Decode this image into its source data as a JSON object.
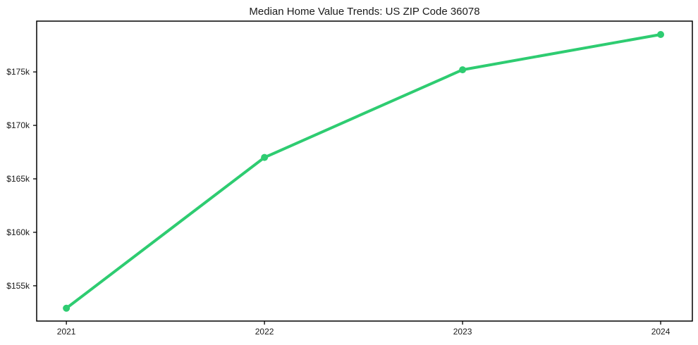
{
  "figure": {
    "background": "#ffffff"
  },
  "chart_data": {
    "type": "line",
    "title": "Median Home Value Trends: US ZIP Code 36078",
    "x": [
      2021,
      2022,
      2023,
      2024
    ],
    "series": [
      {
        "name": "Median home value",
        "values": [
          152900,
          167000,
          175200,
          178500
        ],
        "color": "#2ecc71",
        "marker": "circle",
        "line_width": 4,
        "marker_radius": 5
      }
    ],
    "xlabel": "",
    "ylabel": "",
    "xlim": [
      2020.85,
      2024.16
    ],
    "ylim": [
      151700,
      179750
    ],
    "xticks": {
      "values": [
        2021,
        2022,
        2023,
        2024
      ],
      "labels": [
        "2021",
        "2022",
        "2023",
        "2024"
      ]
    },
    "yticks": {
      "values": [
        155000,
        160000,
        165000,
        170000,
        175000
      ],
      "labels": [
        "$155k",
        "$160k",
        "$165k",
        "$170k",
        "$175k"
      ]
    },
    "grid": false,
    "legend": false,
    "colors": {
      "spine": "#000000",
      "tick": "#000000",
      "text": "#1a1a1a",
      "background": "#ffffff"
    }
  }
}
